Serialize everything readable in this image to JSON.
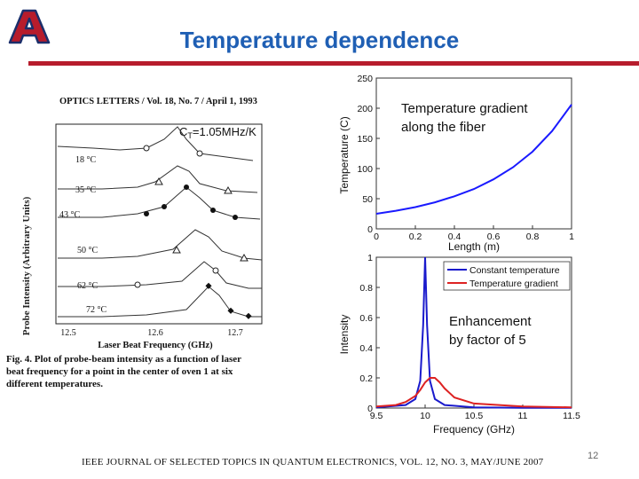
{
  "slide": {
    "title": "Temperature dependence",
    "page_number": "12",
    "journal_citation": "IEEE JOURNAL OF SELECTED TOPICS IN QUANTUM ELECTRONICS, VOL. 12, NO. 3, MAY/JUNE 2007",
    "logo_letter": "A",
    "colors": {
      "title": "#1f5fb4",
      "rule": "#b71c2c",
      "logo": "#b71c2c",
      "logo_outline": "#1b2f6b"
    }
  },
  "left_figure": {
    "header": "OPTICS LETTERS / Vol. 18, No. 7 / April 1, 1993",
    "ct_prefix": "C",
    "ct_sub": "T",
    "ct_value": "=1.05MHz/K",
    "ylabel": "Probe Intensity (Arbitrary Units)",
    "xlabel": "Laser Beat Frequency (GHz)",
    "ticks": [
      "12.5",
      "12.6",
      "12.7"
    ],
    "temperature_labels": [
      "18 °C",
      "35 °C",
      "43 °C",
      "50 °C",
      "62 °C",
      "72 °C"
    ],
    "caption_lines": [
      "Fig. 4.   Plot of probe-beam intensity as a function of laser",
      "beat frequency for a point in the center of oven 1 at six",
      "different temperatures."
    ]
  },
  "right_top_chart": {
    "annotation_line1": "Temperature gradient",
    "annotation_line2": "along the fiber",
    "chart_data": {
      "type": "line",
      "xlabel": "Length (m)",
      "ylabel": "Temperature (C)",
      "xlim": [
        0,
        1
      ],
      "ylim": [
        0,
        250
      ],
      "xticks": [
        "0",
        "0.2",
        "0.4",
        "0.6",
        "0.8",
        "1"
      ],
      "yticks": [
        "0",
        "50",
        "100",
        "150",
        "200",
        "250"
      ],
      "series": [
        {
          "x": [
            0,
            0.1,
            0.2,
            0.3,
            0.4,
            0.5,
            0.6,
            0.7,
            0.8,
            0.9,
            1.0
          ],
          "y": [
            25,
            30,
            36,
            44,
            54,
            66,
            82,
            102,
            128,
            162,
            206
          ],
          "color": "#1a1aff"
        }
      ]
    }
  },
  "right_bottom_chart": {
    "annotation_line1": "Enhancement",
    "annotation_line2": "by factor of 5",
    "chart_data": {
      "type": "line",
      "xlabel": "Frequency (GHz)",
      "ylabel": "Intensity",
      "xlim": [
        9.5,
        11.5
      ],
      "ylim": [
        0,
        1
      ],
      "xticks": [
        "9.5",
        "10",
        "10.5",
        "11",
        "11.5"
      ],
      "yticks": [
        "0",
        "0.2",
        "0.4",
        "0.6",
        "0.8",
        "1"
      ],
      "legend": "top-right",
      "series": [
        {
          "name": "Constant temperature",
          "x": [
            9.5,
            9.8,
            9.9,
            9.95,
            9.98,
            10.0,
            10.02,
            10.05,
            10.1,
            10.2,
            10.5,
            11.0,
            11.5
          ],
          "y": [
            0.005,
            0.02,
            0.06,
            0.18,
            0.55,
            1.0,
            0.55,
            0.18,
            0.06,
            0.02,
            0.005,
            0.002,
            0.001
          ],
          "color": "#1a1acc"
        },
        {
          "name": "Temperature gradient",
          "x": [
            9.5,
            9.7,
            9.8,
            9.9,
            9.95,
            10.0,
            10.05,
            10.1,
            10.15,
            10.2,
            10.3,
            10.5,
            11.0,
            11.5
          ],
          "y": [
            0.01,
            0.02,
            0.04,
            0.08,
            0.12,
            0.17,
            0.2,
            0.2,
            0.17,
            0.13,
            0.07,
            0.03,
            0.01,
            0.005
          ],
          "color": "#dd2222"
        }
      ]
    }
  }
}
